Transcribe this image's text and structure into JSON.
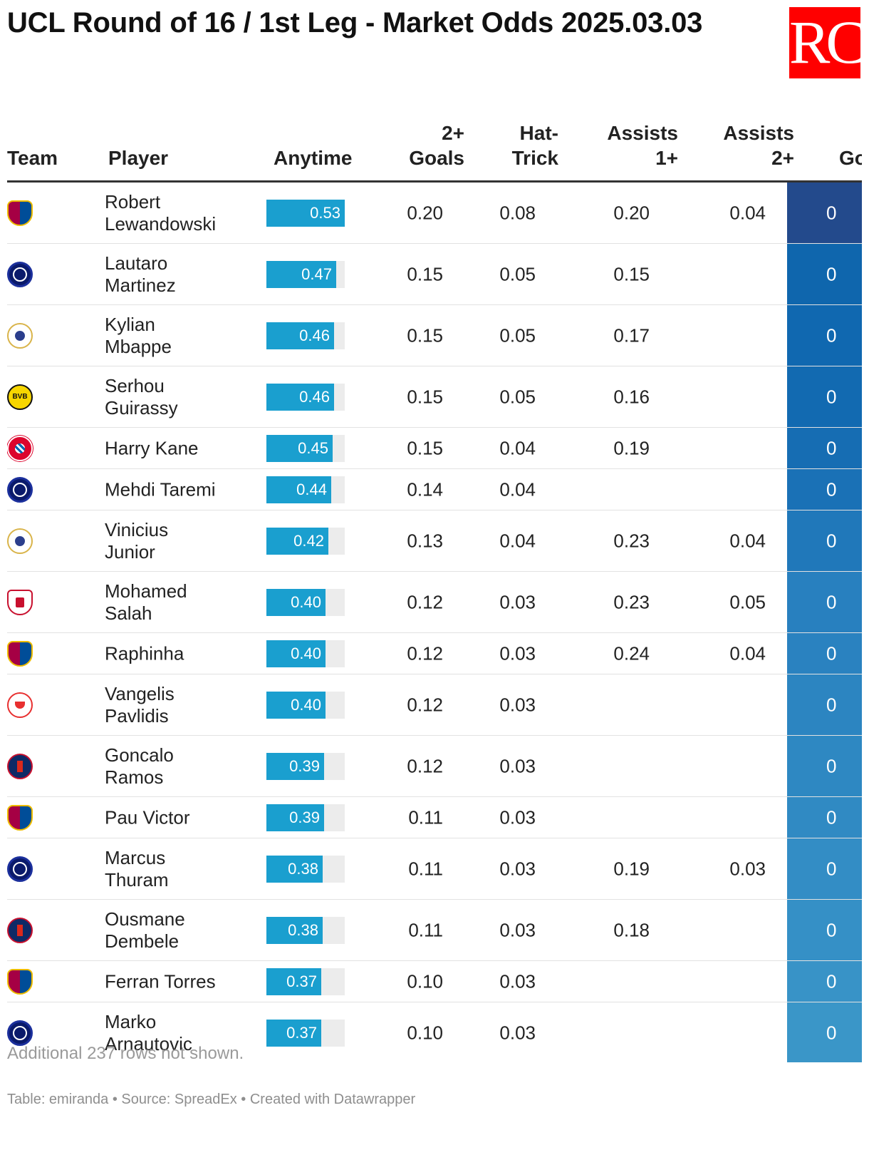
{
  "title": "UCL Round of 16 / 1st Leg - Market Odds 2025.03.03",
  "logo_text": "RC",
  "colors": {
    "bar": "#1a9fcf",
    "bar_track": "#ececec",
    "logo_bg": "#ff0000",
    "heat_dark": "#244a8e",
    "heat_light": "#3a97c9"
  },
  "headers": {
    "team": "Team",
    "player": "Player",
    "anytime": "Anytime",
    "goals2_line1": "2+",
    "goals2_line2": "Goals",
    "hat_line1": "Hat-",
    "hat_line2": "Trick",
    "a1_line1": "Assists",
    "a1_line2": "1+",
    "a2_line1": "Assists",
    "a2_line2": "2+",
    "cut": "Go"
  },
  "rows": [
    {
      "team": "barca-crest-icon",
      "player": "Robert Lewandowski",
      "anytime": 0.53,
      "anytime_label": "0.53",
      "goals2": "0.20",
      "hat": "0.08",
      "a1": "0.20",
      "a2": "0.04",
      "heat": "0",
      "heat_color": "#234a8c"
    },
    {
      "team": "inter-crest-icon",
      "player": "Lautaro Martinez",
      "anytime": 0.47,
      "anytime_label": "0.47",
      "goals2": "0.15",
      "hat": "0.05",
      "a1": "0.15",
      "a2": "",
      "heat": "0",
      "heat_color": "#0f66ad"
    },
    {
      "team": "real-madrid-crest-icon",
      "player": "Kylian Mbappe",
      "anytime": 0.46,
      "anytime_label": "0.46",
      "goals2": "0.15",
      "hat": "0.05",
      "a1": "0.17",
      "a2": "",
      "heat": "0",
      "heat_color": "#1068b0"
    },
    {
      "team": "bvb-crest-icon",
      "player": "Serhou Guirassy",
      "anytime": 0.46,
      "anytime_label": "0.46",
      "goals2": "0.15",
      "hat": "0.05",
      "a1": "0.16",
      "a2": "",
      "heat": "0",
      "heat_color": "#126ab1"
    },
    {
      "team": "bayern-crest-icon",
      "player": "Harry Kane",
      "anytime": 0.45,
      "anytime_label": "0.45",
      "goals2": "0.15",
      "hat": "0.04",
      "a1": "0.19",
      "a2": "",
      "heat": "0",
      "heat_color": "#166db3"
    },
    {
      "team": "inter-crest-icon",
      "player": "Mehdi Taremi",
      "anytime": 0.44,
      "anytime_label": "0.44",
      "goals2": "0.14",
      "hat": "0.04",
      "a1": "",
      "a2": "",
      "heat": "0",
      "heat_color": "#1a71b6"
    },
    {
      "team": "real-madrid-crest-icon",
      "player": "Vinicius Junior",
      "anytime": 0.42,
      "anytime_label": "0.42",
      "goals2": "0.13",
      "hat": "0.04",
      "a1": "0.23",
      "a2": "0.04",
      "heat": "0",
      "heat_color": "#2078ba"
    },
    {
      "team": "liverpool-crest-icon",
      "player": "Mohamed Salah",
      "anytime": 0.4,
      "anytime_label": "0.40",
      "goals2": "0.12",
      "hat": "0.03",
      "a1": "0.23",
      "a2": "0.05",
      "heat": "0",
      "heat_color": "#2880bf"
    },
    {
      "team": "barca-crest-icon",
      "player": "Raphinha",
      "anytime": 0.4,
      "anytime_label": "0.40",
      "goals2": "0.12",
      "hat": "0.03",
      "a1": "0.24",
      "a2": "0.04",
      "heat": "0",
      "heat_color": "#2a82c0"
    },
    {
      "team": "benfica-crest-icon",
      "player": "Vangelis Pavlidis",
      "anytime": 0.4,
      "anytime_label": "0.40",
      "goals2": "0.12",
      "hat": "0.03",
      "a1": "",
      "a2": "",
      "heat": "0",
      "heat_color": "#2c85c1"
    },
    {
      "team": "psg-crest-icon",
      "player": "Goncalo Ramos",
      "anytime": 0.39,
      "anytime_label": "0.39",
      "goals2": "0.12",
      "hat": "0.03",
      "a1": "",
      "a2": "",
      "heat": "0",
      "heat_color": "#2e88c2"
    },
    {
      "team": "barca-crest-icon",
      "player": "Pau Victor",
      "anytime": 0.39,
      "anytime_label": "0.39",
      "goals2": "0.11",
      "hat": "0.03",
      "a1": "",
      "a2": "",
      "heat": "0",
      "heat_color": "#308ac3"
    },
    {
      "team": "inter-crest-icon",
      "player": "Marcus Thuram",
      "anytime": 0.38,
      "anytime_label": "0.38",
      "goals2": "0.11",
      "hat": "0.03",
      "a1": "0.19",
      "a2": "0.03",
      "heat": "0",
      "heat_color": "#338dc5"
    },
    {
      "team": "psg-crest-icon",
      "player": "Ousmane Dembele",
      "anytime": 0.38,
      "anytime_label": "0.38",
      "goals2": "0.11",
      "hat": "0.03",
      "a1": "0.18",
      "a2": "",
      "heat": "0",
      "heat_color": "#3590c6"
    },
    {
      "team": "barca-crest-icon",
      "player": "Ferran Torres",
      "anytime": 0.37,
      "anytime_label": "0.37",
      "goals2": "0.10",
      "hat": "0.03",
      "a1": "",
      "a2": "",
      "heat": "0",
      "heat_color": "#3893c7"
    },
    {
      "team": "inter-crest-icon",
      "player": "Marko Arnautovic",
      "anytime": 0.37,
      "anytime_label": "0.37",
      "goals2": "0.10",
      "hat": "0.03",
      "a1": "",
      "a2": "",
      "heat": "0",
      "heat_color": "#3a96c8"
    }
  ],
  "note": "Additional 237 rows not shown.",
  "footer": "Table: emiranda • Source: SpreadEx • Created with Datawrapper"
}
